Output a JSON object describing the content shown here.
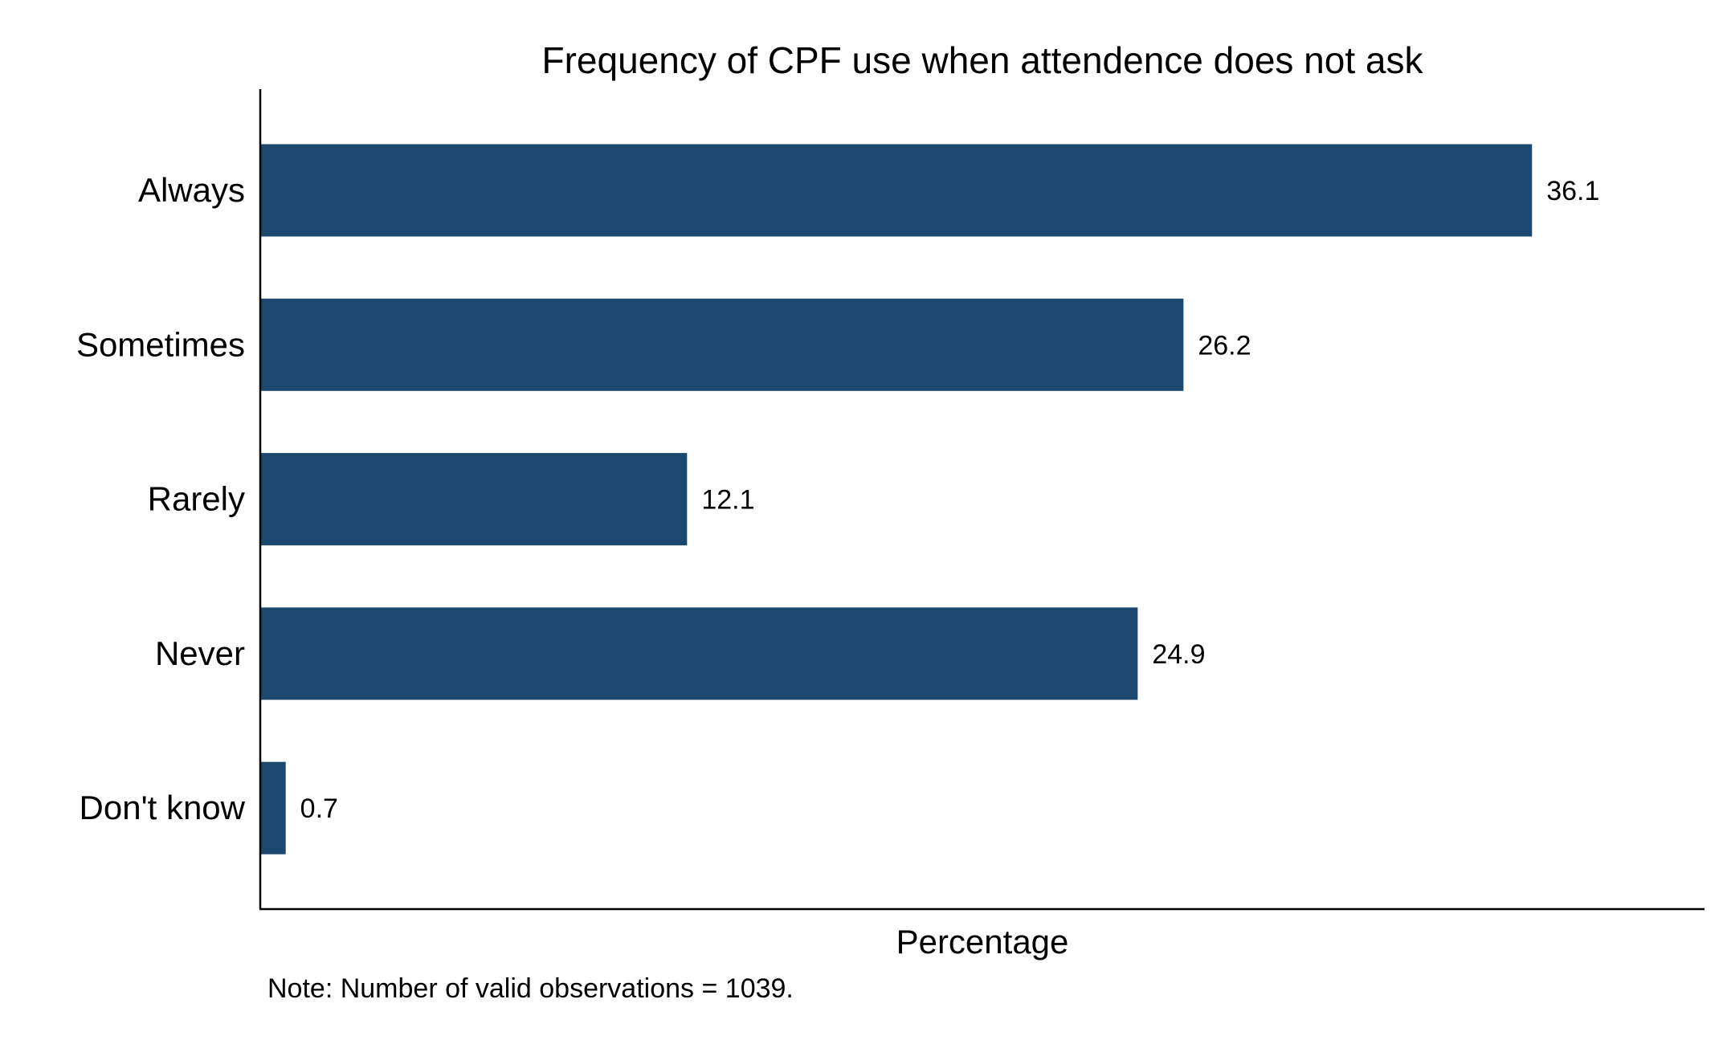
{
  "chart_data": {
    "type": "bar",
    "orientation": "horizontal",
    "title": "Frequency of CPF use when attendence does not ask",
    "xlabel": "Percentage",
    "ylabel": "",
    "note": "Note: Number of valid observations = 1039.",
    "categories": [
      "Always",
      "Sometimes",
      "Rarely",
      "Never",
      "Don't know"
    ],
    "values": [
      36.1,
      26.2,
      12.1,
      24.9,
      0.7
    ],
    "value_labels": [
      "36.1",
      "26.2",
      "12.1",
      "24.9",
      "0.7"
    ],
    "xlim": [
      0,
      41
    ],
    "grid": false,
    "legend": "none",
    "bar_color": "#1c4870",
    "axis_color": "#000000"
  }
}
